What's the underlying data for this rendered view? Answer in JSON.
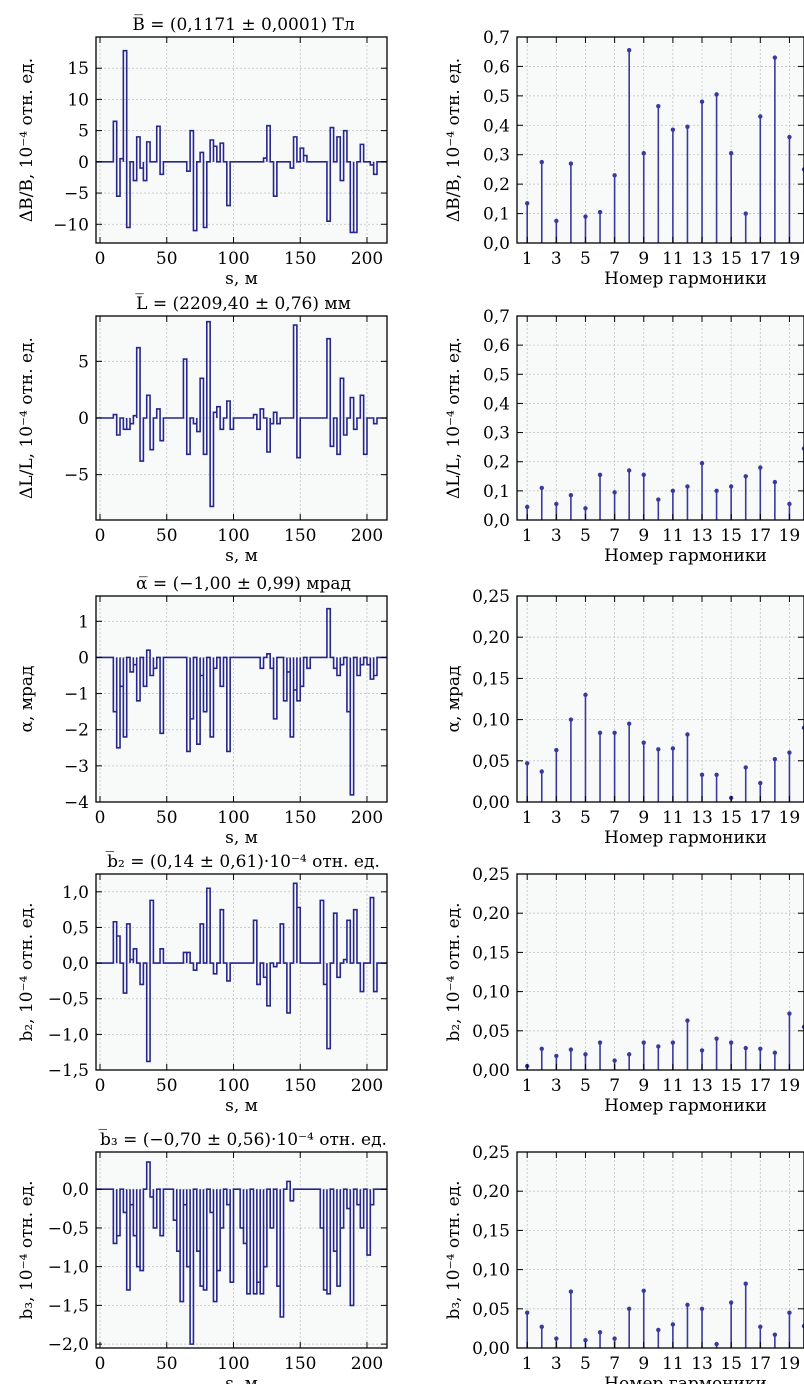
{
  "figure": {
    "colors": {
      "line": "#26268c",
      "stem": "#3a3a9e",
      "grid": "#c2c2c2",
      "plot_bg": "#f8fafa",
      "axis": "#000000"
    }
  },
  "chart_data": [
    {
      "type": "step",
      "title": "B̅ = (0,1171 ± 0,0001) Тл",
      "xlabel": "s, м",
      "ylabel": "ΔB/B, 10⁻⁴ отн. ед.",
      "xlim": [
        -3,
        215
      ],
      "ylim": [
        -13,
        20
      ],
      "xticks": [
        "0",
        "50",
        "100",
        "150",
        "200"
      ],
      "yticks": [
        "15",
        "10",
        "5",
        "0",
        "−5",
        "−10"
      ],
      "ytick_values": [
        15,
        10,
        5,
        0,
        -5,
        -10
      ],
      "x": [
        10,
        12.5,
        15,
        17.5,
        20,
        22.5,
        25,
        27.5,
        30,
        32.5,
        35,
        37.5,
        40,
        42.5,
        45,
        47.5,
        65,
        67.5,
        70,
        72.5,
        75,
        77.5,
        80,
        82.5,
        85,
        87.5,
        90,
        92.5,
        95,
        97.5,
        100,
        102.5,
        120,
        122.5,
        125,
        127.5,
        130,
        132.5,
        135,
        137.5,
        140,
        142.5,
        145,
        147.5,
        150,
        152.5,
        155,
        157.5,
        170,
        172.5,
        175,
        177.5,
        180,
        182.5,
        185,
        187.5,
        190,
        192.5,
        195,
        197.5,
        200,
        202.5,
        205,
        207.5
      ],
      "values": [
        6.5,
        -5.5,
        0.5,
        17.8,
        -10.5,
        0,
        -3,
        4,
        -1,
        -3,
        3.2,
        0,
        0,
        5.7,
        -2,
        0,
        -1.5,
        5,
        -11,
        0,
        1.5,
        -10.5,
        0,
        3.5,
        2.5,
        0,
        3,
        0,
        -7,
        0,
        0,
        0,
        0,
        0.6,
        5.8,
        0,
        -5.5,
        0,
        0,
        0,
        0,
        -1,
        4,
        0,
        2.2,
        1,
        0,
        0,
        -9.5,
        5.5,
        0,
        4,
        -3,
        5,
        0,
        -11.3,
        -11.3,
        0,
        2.8,
        0,
        0,
        -0.5,
        -2,
        0
      ]
    },
    {
      "type": "stem",
      "xlabel": "Номер гармоники",
      "ylabel": "ΔB/B, 10⁻⁴ отн. ед.",
      "xlim": [
        0.3,
        20
      ],
      "ylim": [
        0,
        0.7
      ],
      "xticks": [
        "1",
        "3",
        "5",
        "7",
        "9",
        "11",
        "13",
        "15",
        "17",
        "19"
      ],
      "yticks": [
        "0,7",
        "0,6",
        "0,5",
        "0,4",
        "0,3",
        "0,2",
        "0,1",
        "0,0"
      ],
      "ytick_values": [
        0.7,
        0.6,
        0.5,
        0.4,
        0.3,
        0.2,
        0.1,
        0.0
      ],
      "x": [
        1,
        2,
        3,
        4,
        5,
        6,
        7,
        8,
        9,
        10,
        11,
        12,
        13,
        14,
        15,
        16,
        17,
        18,
        19,
        20
      ],
      "values": [
        0.135,
        0.275,
        0.075,
        0.27,
        0.09,
        0.105,
        0.23,
        0.655,
        0.305,
        0.465,
        0.385,
        0.395,
        0.48,
        0.505,
        0.305,
        0.1,
        0.43,
        0.63,
        0.36,
        0.25
      ]
    },
    {
      "type": "step",
      "title": "L̅ = (2209,40 ± 0,76) мм",
      "xlabel": "s, м",
      "ylabel": "ΔL/L, 10⁻⁴ отн. ед.",
      "xlim": [
        -3,
        215
      ],
      "ylim": [
        -9,
        9
      ],
      "xticks": [
        "0",
        "50",
        "100",
        "150",
        "200"
      ],
      "yticks": [
        "5",
        "0",
        "−5"
      ],
      "ytick_values": [
        5,
        0,
        -5
      ],
      "x": [
        10,
        12.5,
        15,
        17.5,
        20,
        22.5,
        25,
        27.5,
        30,
        32.5,
        35,
        37.5,
        40,
        42.5,
        45,
        47.5,
        60,
        62.5,
        65,
        67.5,
        70,
        72.5,
        75,
        77.5,
        80,
        82.5,
        85,
        87.5,
        90,
        92.5,
        95,
        97.5,
        110,
        112.5,
        115,
        117.5,
        120,
        122.5,
        125,
        127.5,
        130,
        132.5,
        135,
        137.5,
        140,
        142.5,
        145,
        147.5,
        165,
        167.5,
        170,
        172.5,
        175,
        177.5,
        180,
        182.5,
        185,
        187.5,
        190,
        192.5,
        195,
        197.5,
        200,
        202.5,
        205,
        207.5
      ],
      "values": [
        0.3,
        -1.5,
        0,
        -1,
        -1,
        -0.5,
        0.2,
        6.2,
        -3.8,
        0,
        2,
        -2.8,
        0,
        0.8,
        -2,
        0,
        0,
        5.2,
        -3.2,
        0,
        -0.5,
        -1.2,
        3.5,
        -3.2,
        8.5,
        -7.8,
        0.5,
        1,
        -1,
        0,
        1.5,
        -1,
        0,
        0,
        0.3,
        -1,
        0.8,
        0,
        -3,
        -0.5,
        0.5,
        -0.5,
        0,
        0,
        0,
        0,
        8.2,
        -3.5,
        0,
        0,
        7,
        -2.5,
        0,
        -3.2,
        3.5,
        -1.5,
        0,
        1.8,
        -1,
        0,
        2,
        -3.2,
        0,
        0,
        -0.5,
        0
      ]
    },
    {
      "type": "stem",
      "xlabel": "Номер гармоники",
      "ylabel": "ΔL/L, 10⁻⁴ отн. ед.",
      "xlim": [
        0.3,
        20
      ],
      "ylim": [
        0,
        0.7
      ],
      "xticks": [
        "1",
        "3",
        "5",
        "7",
        "9",
        "11",
        "13",
        "15",
        "17",
        "19"
      ],
      "yticks": [
        "0,7",
        "0,6",
        "0,5",
        "0,4",
        "0,3",
        "0,2",
        "0,1",
        "0,0"
      ],
      "ytick_values": [
        0.7,
        0.6,
        0.5,
        0.4,
        0.3,
        0.2,
        0.1,
        0.0
      ],
      "x": [
        1,
        2,
        3,
        4,
        5,
        6,
        7,
        8,
        9,
        10,
        11,
        12,
        13,
        14,
        15,
        16,
        17,
        18,
        19,
        20
      ],
      "values": [
        0.045,
        0.11,
        0.055,
        0.085,
        0.04,
        0.155,
        0.095,
        0.17,
        0.155,
        0.07,
        0.1,
        0.115,
        0.195,
        0.1,
        0.115,
        0.15,
        0.18,
        0.13,
        0.055,
        0.245
      ]
    },
    {
      "type": "step",
      "title": "α̅ = (−1,00 ± 0,99) мрад",
      "xlabel": "s, м",
      "ylabel": "α, мрад",
      "xlim": [
        -3,
        215
      ],
      "ylim": [
        -4,
        1.7
      ],
      "xticks": [
        "0",
        "50",
        "100",
        "150",
        "200"
      ],
      "yticks": [
        "1",
        "0",
        "−1",
        "−2",
        "−3",
        "−4"
      ],
      "ytick_values": [
        1,
        0,
        -1,
        -2,
        -3,
        -4
      ],
      "x": [
        10,
        12.5,
        15,
        17.5,
        20,
        22.5,
        25,
        27.5,
        30,
        32.5,
        35,
        37.5,
        40,
        42.5,
        45,
        47.5,
        65,
        67.5,
        70,
        72.5,
        75,
        77.5,
        80,
        82.5,
        85,
        87.5,
        90,
        92.5,
        95,
        97.5,
        100,
        102.5,
        120,
        122.5,
        125,
        127.5,
        130,
        132.5,
        135,
        137.5,
        140,
        142.5,
        145,
        147.5,
        150,
        152.5,
        155,
        157.5,
        165,
        167.5,
        170,
        172.5,
        175,
        177.5,
        180,
        182.5,
        185,
        187.5,
        190,
        192.5,
        195,
        197.5,
        200,
        202.5,
        205,
        207.5
      ],
      "values": [
        -1.5,
        -2.5,
        -0.8,
        -2.2,
        0,
        -0.4,
        -0.2,
        -1.2,
        0,
        -0.8,
        0.2,
        -0.5,
        -0.3,
        0,
        -2.1,
        0,
        -2.6,
        -1.7,
        0,
        -2.4,
        -0.5,
        -1.5,
        0,
        -2.2,
        -0.3,
        0,
        -0.8,
        0,
        -2.6,
        0,
        0,
        0,
        -0.3,
        0,
        0.1,
        -0.3,
        -1.7,
        0,
        0,
        -1.2,
        -0.4,
        -2.2,
        -0.9,
        -1.2,
        -0.8,
        0,
        -0.3,
        0,
        0,
        0,
        1.35,
        0,
        -0.3,
        -0.5,
        -0.2,
        0,
        -1.5,
        -3.8,
        0,
        -0.5,
        -0.2,
        0,
        -0.2,
        -0.6,
        -0.5,
        0
      ]
    },
    {
      "type": "stem",
      "xlabel": "Номер гармоники",
      "ylabel": "α, мрад",
      "xlim": [
        0.3,
        20
      ],
      "ylim": [
        0,
        0.25
      ],
      "xticks": [
        "1",
        "3",
        "5",
        "7",
        "9",
        "11",
        "13",
        "15",
        "17",
        "19"
      ],
      "yticks": [
        "0,25",
        "0,20",
        "0,15",
        "0,10",
        "0,05",
        "0,00"
      ],
      "ytick_values": [
        0.25,
        0.2,
        0.15,
        0.1,
        0.05,
        0.0
      ],
      "x": [
        1,
        2,
        3,
        4,
        5,
        6,
        7,
        8,
        9,
        10,
        11,
        12,
        13,
        14,
        15,
        16,
        17,
        18,
        19,
        20
      ],
      "values": [
        0.047,
        0.037,
        0.063,
        0.1,
        0.13,
        0.084,
        0.084,
        0.095,
        0.072,
        0.064,
        0.065,
        0.082,
        0.033,
        0.033,
        0.005,
        0.042,
        0.023,
        0.052,
        0.06,
        0.09
      ]
    },
    {
      "type": "step",
      "title": "b̅₂ = (0,14 ± 0,61)·10⁻⁴ отн. ед.",
      "xlabel": "s, м",
      "ylabel": "b₂, 10⁻⁴ отн. ед.",
      "xlim": [
        -3,
        215
      ],
      "ylim": [
        -1.5,
        1.25
      ],
      "xticks": [
        "0",
        "50",
        "100",
        "150",
        "200"
      ],
      "yticks": [
        "1,0",
        "0,5",
        "0,0",
        "−0,5",
        "−1,0",
        "−1,5"
      ],
      "ytick_values": [
        1.0,
        0.5,
        0.0,
        -0.5,
        -1.0,
        -1.5
      ],
      "x": [
        10,
        12.5,
        15,
        17.5,
        20,
        22.5,
        25,
        27.5,
        30,
        32.5,
        35,
        37.5,
        40,
        42.5,
        45,
        47.5,
        60,
        62.5,
        65,
        67.5,
        70,
        72.5,
        75,
        77.5,
        80,
        82.5,
        85,
        87.5,
        90,
        92.5,
        95,
        97.5,
        110,
        112.5,
        115,
        117.5,
        120,
        122.5,
        125,
        127.5,
        130,
        132.5,
        135,
        137.5,
        140,
        142.5,
        145,
        147.5,
        165,
        167.5,
        170,
        172.5,
        175,
        177.5,
        180,
        182.5,
        185,
        187.5,
        190,
        192.5,
        195,
        197.5,
        200,
        202.5,
        205,
        207.5
      ],
      "values": [
        0.58,
        0.38,
        0,
        -0.42,
        0.55,
        0.05,
        0.2,
        0,
        -0.3,
        0,
        -1.38,
        0.88,
        0,
        0,
        0.2,
        0,
        0,
        0.15,
        0.15,
        0,
        -0.1,
        0,
        0.55,
        0,
        1.05,
        0,
        -0.15,
        0,
        0.75,
        0,
        -0.25,
        0,
        0,
        0,
        0.6,
        -0.3,
        0,
        -0.2,
        -0.6,
        0,
        -0.05,
        0,
        0.55,
        0,
        -0.7,
        0,
        1.12,
        0.78,
        0.88,
        -0.3,
        -1.2,
        0,
        0.7,
        -0.2,
        0,
        0.05,
        0.6,
        0,
        0.75,
        0,
        -0.4,
        0,
        0,
        0.92,
        -0.4,
        0
      ]
    },
    {
      "type": "stem",
      "xlabel": "Номер гармоники",
      "ylabel": "b₂, 10⁻⁴ отн. ед.",
      "xlim": [
        0.3,
        20
      ],
      "ylim": [
        0,
        0.25
      ],
      "xticks": [
        "1",
        "3",
        "5",
        "7",
        "9",
        "11",
        "13",
        "15",
        "17",
        "19"
      ],
      "yticks": [
        "0,25",
        "0,20",
        "0,15",
        "0,10",
        "0,05",
        "0,00"
      ],
      "ytick_values": [
        0.25,
        0.2,
        0.15,
        0.1,
        0.05,
        0.0
      ],
      "x": [
        1,
        2,
        3,
        4,
        5,
        6,
        7,
        8,
        9,
        10,
        11,
        12,
        13,
        14,
        15,
        16,
        17,
        18,
        19,
        20
      ],
      "values": [
        0.005,
        0.027,
        0.018,
        0.026,
        0.02,
        0.035,
        0.012,
        0.02,
        0.035,
        0.03,
        0.035,
        0.063,
        0.025,
        0.04,
        0.035,
        0.028,
        0.027,
        0.022,
        0.072,
        0.055
      ]
    },
    {
      "type": "step",
      "title": "b̅₃ = (−0,70 ± 0,56)·10⁻⁴ отн. ед.",
      "xlabel": "s, м",
      "ylabel": "b₃, 10⁻⁴ отн. ед.",
      "xlim": [
        -3,
        215
      ],
      "ylim": [
        -2.05,
        0.48
      ],
      "xticks": [
        "0",
        "50",
        "100",
        "150",
        "200"
      ],
      "yticks": [
        "0,0",
        "−0,5",
        "−1,0",
        "−1,5",
        "−2,0"
      ],
      "ytick_values": [
        0.0,
        -0.5,
        -1.0,
        -1.5,
        -2.0
      ],
      "x": [
        10,
        12.5,
        15,
        17.5,
        20,
        22.5,
        25,
        27.5,
        30,
        32.5,
        35,
        37.5,
        40,
        42.5,
        45,
        47.5,
        55,
        57.5,
        60,
        62.5,
        65,
        67.5,
        70,
        72.5,
        75,
        77.5,
        80,
        82.5,
        85,
        87.5,
        90,
        92.5,
        95,
        97.5,
        100,
        102.5,
        105,
        107.5,
        110,
        112.5,
        115,
        117.5,
        120,
        122.5,
        125,
        127.5,
        130,
        132.5,
        135,
        137.5,
        140,
        142.5,
        145,
        147.5,
        165,
        167.5,
        170,
        172.5,
        175,
        177.5,
        180,
        182.5,
        185,
        187.5,
        190,
        192.5,
        195,
        197.5,
        200,
        202.5,
        205,
        207.5
      ],
      "values": [
        -0.7,
        -0.6,
        0,
        -0.3,
        -1.3,
        -0.2,
        -0.6,
        -1.0,
        -1.05,
        0,
        0.35,
        -0.1,
        -0.5,
        0,
        -0.6,
        0,
        -0.4,
        -0.8,
        -1.45,
        -0.2,
        -1.0,
        -2.0,
        0,
        -0.8,
        -1.25,
        -1.3,
        0,
        -0.3,
        -1.45,
        -1.05,
        -0.5,
        0,
        -0.2,
        -1.2,
        0,
        0,
        -0.5,
        -0.7,
        -1.35,
        0,
        -1.35,
        -1.2,
        -1.35,
        -1.0,
        0,
        -0.5,
        0,
        -1.25,
        -1.65,
        0,
        0.1,
        -0.15,
        0,
        0,
        -0.5,
        -1.3,
        -1.35,
        0,
        -0.8,
        -1.25,
        -0.5,
        0,
        -0.25,
        -1.5,
        0,
        -0.2,
        -0.5,
        0,
        -0.85,
        -0.2,
        0,
        0
      ]
    },
    {
      "type": "stem",
      "xlabel": "Номер гармоники",
      "ylabel": "b₃, 10⁻⁴ отн. ед.",
      "xlim": [
        0.3,
        20
      ],
      "ylim": [
        0,
        0.25
      ],
      "xticks": [
        "1",
        "3",
        "5",
        "7",
        "9",
        "11",
        "13",
        "15",
        "17",
        "19"
      ],
      "yticks": [
        "0,25",
        "0,20",
        "0,15",
        "0,10",
        "0,05",
        "0,00"
      ],
      "ytick_values": [
        0.25,
        0.2,
        0.15,
        0.1,
        0.05,
        0.0
      ],
      "x": [
        1,
        2,
        3,
        4,
        5,
        6,
        7,
        8,
        9,
        10,
        11,
        12,
        13,
        14,
        15,
        16,
        17,
        18,
        19,
        20
      ],
      "values": [
        0.045,
        0.027,
        0.012,
        0.072,
        0.01,
        0.02,
        0.012,
        0.05,
        0.073,
        0.023,
        0.03,
        0.055,
        0.05,
        0.005,
        0.058,
        0.082,
        0.027,
        0.017,
        0.045,
        0.028
      ]
    }
  ]
}
